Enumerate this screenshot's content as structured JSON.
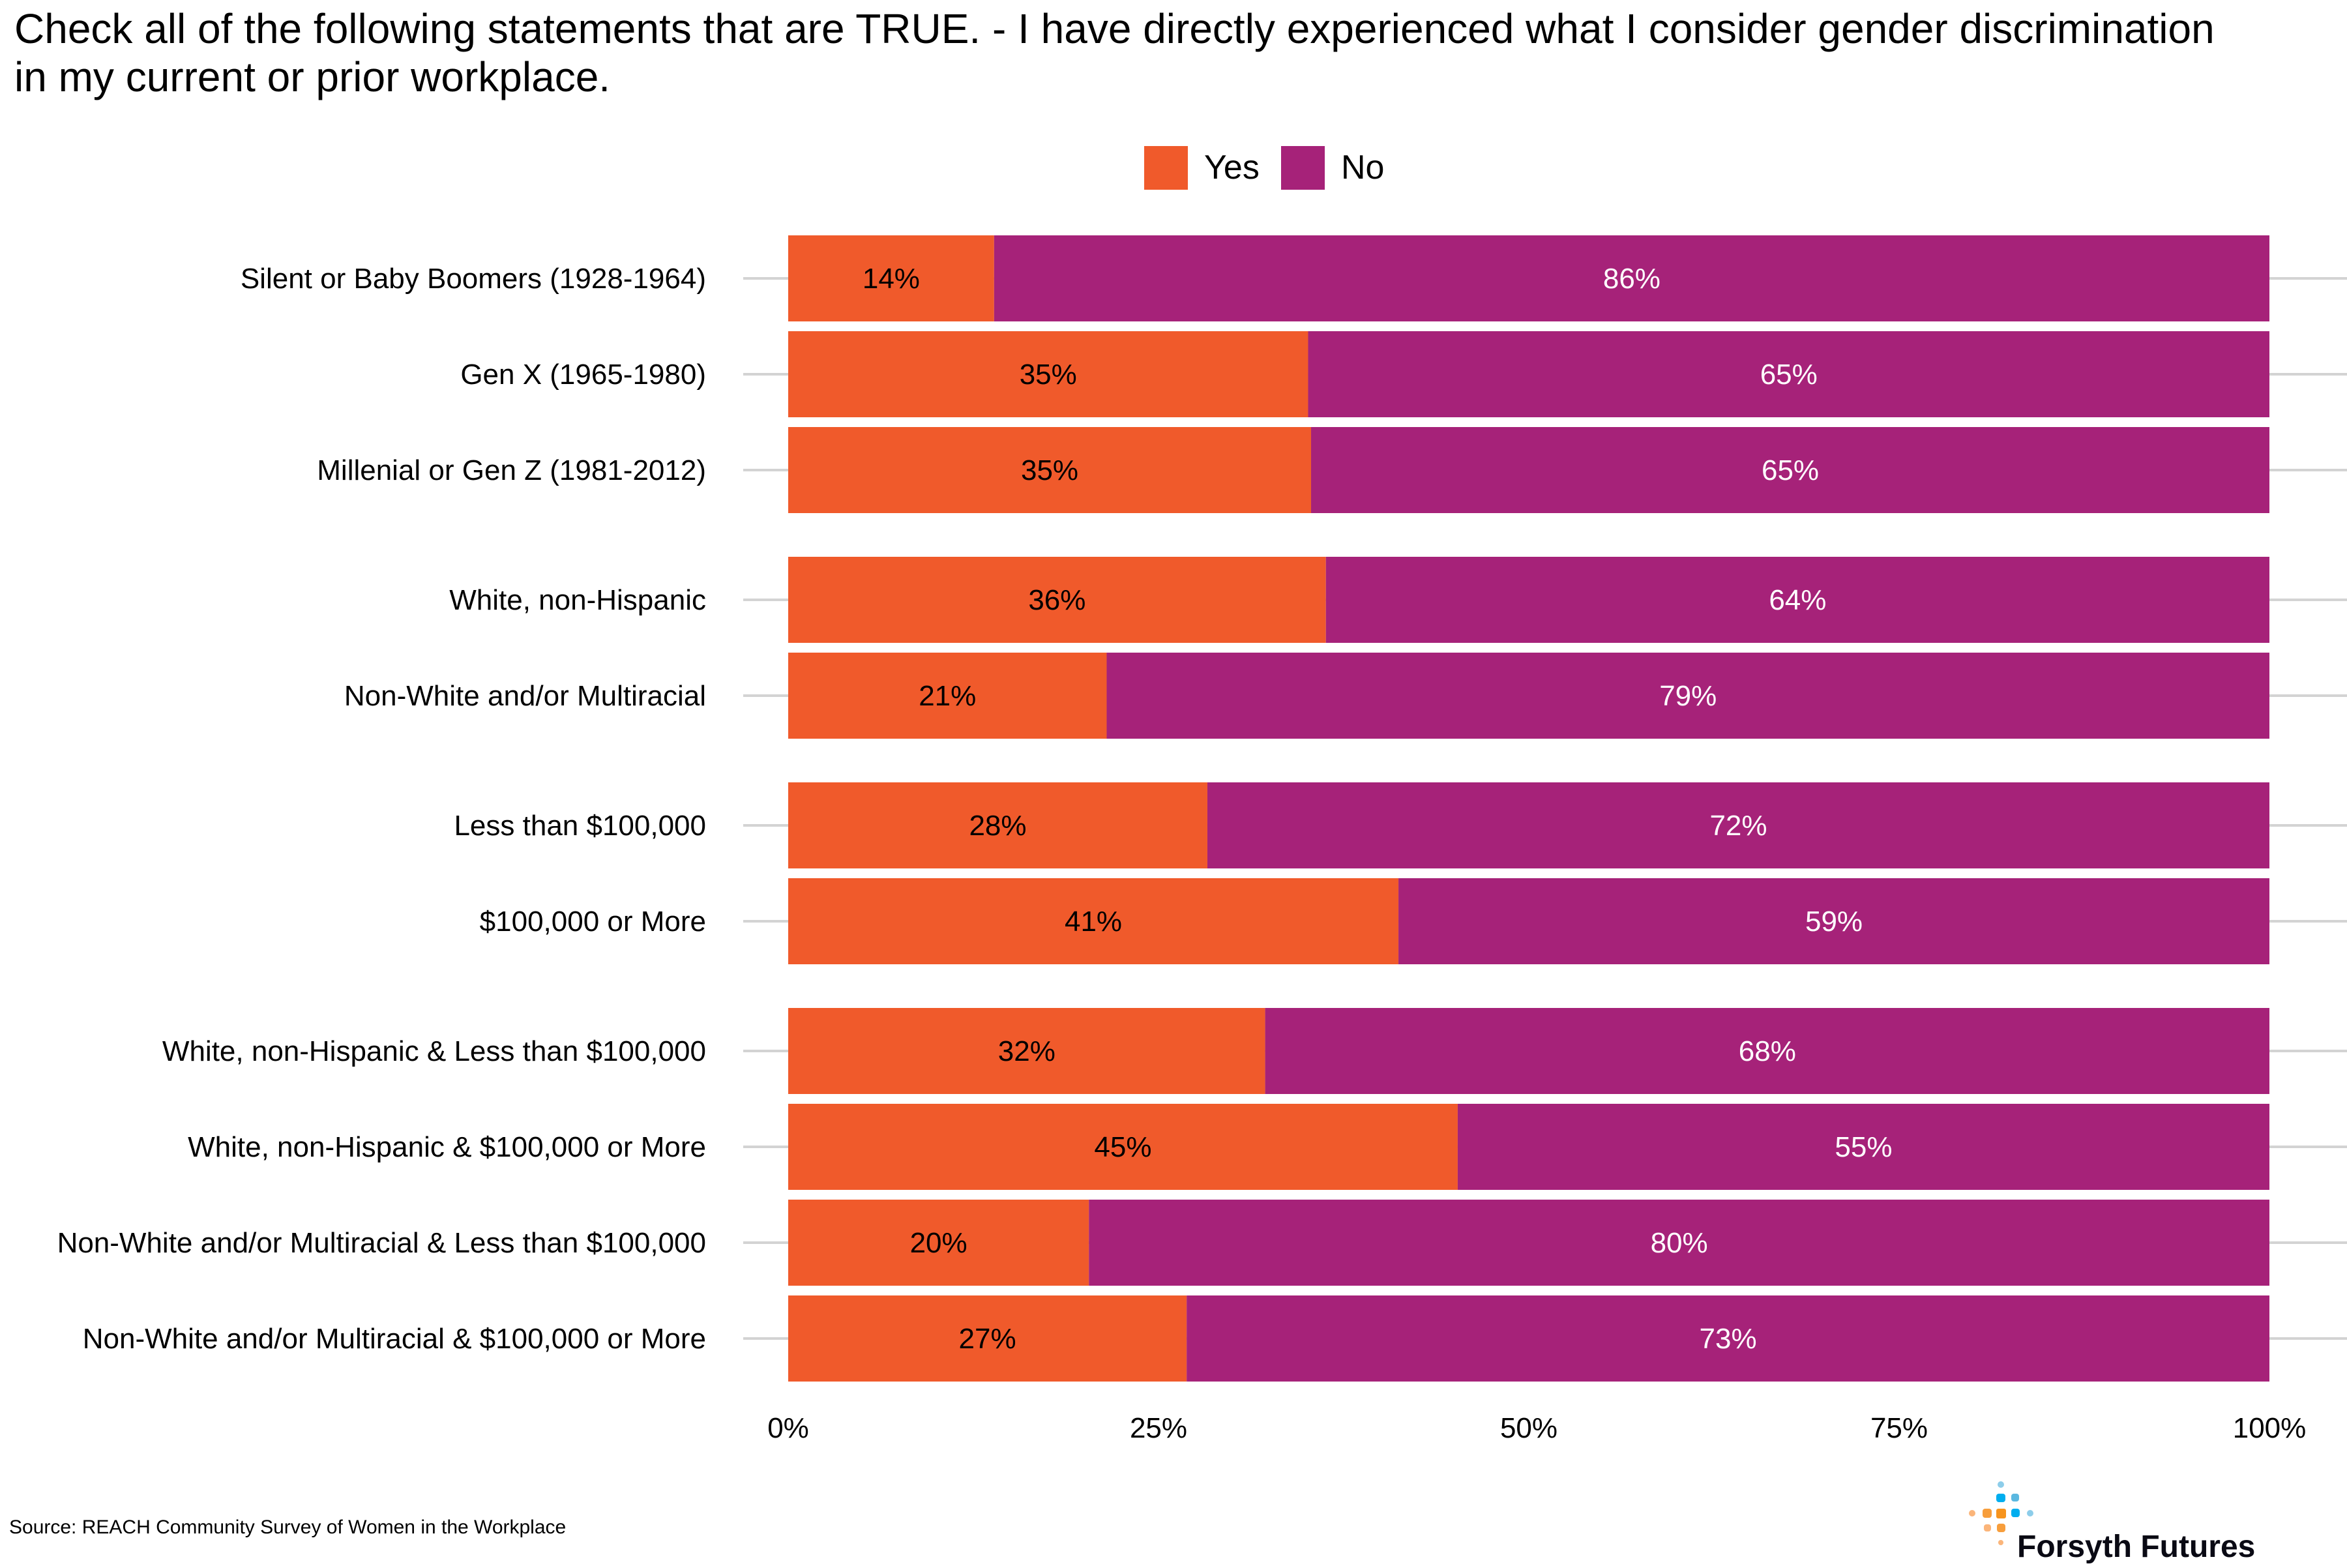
{
  "chart_data": {
    "type": "bar",
    "orientation": "horizontal",
    "stacked": true,
    "title": "Check all of the following statements that are TRUE. - I have directly experienced what I consider gender discrimination in my current or prior workplace.",
    "title_lines": [
      "Check all of the following statements that are TRUE. - I have directly experienced what I consider gender discrimination",
      "in my current or prior workplace."
    ],
    "xlabel": "",
    "ylabel": "",
    "xlim": [
      0,
      1
    ],
    "x_ticks": [
      "0%",
      "25%",
      "50%",
      "75%",
      "100%"
    ],
    "grid": "horizontal lines at each category",
    "legend_position": "top",
    "categories": [
      "Silent or Baby Boomers (1928-1964)",
      "Gen X (1965-1980)",
      "Millenial or Gen Z (1981-2012)",
      "White, non-Hispanic",
      "Non-White and/or Multiracial",
      "Less than $100,000",
      "$100,000 or More",
      "White, non-Hispanic & Less than $100,000",
      "White, non-Hispanic & $100,000 or More",
      "Non-White and/or Multiracial & Less than $100,000",
      "Non-White and/or Multiracial & $100,000 or More"
    ],
    "groups": [
      [
        0,
        1,
        2
      ],
      [
        3,
        4
      ],
      [
        5,
        6
      ],
      [
        7,
        8,
        9,
        10
      ]
    ],
    "series": [
      {
        "name": "Yes",
        "color": "#F05A2B",
        "label_color": "#000000",
        "values": [
          0.139,
          0.351,
          0.353,
          0.363,
          0.215,
          0.283,
          0.412,
          0.322,
          0.452,
          0.203,
          0.269
        ],
        "labels": [
          "14%",
          "35%",
          "35%",
          "36%",
          "21%",
          "28%",
          "41%",
          "32%",
          "45%",
          "20%",
          "27%"
        ]
      },
      {
        "name": "No",
        "color": "#A62279",
        "label_color": "#FFFFFF",
        "values": [
          0.861,
          0.649,
          0.647,
          0.637,
          0.785,
          0.717,
          0.588,
          0.678,
          0.548,
          0.797,
          0.731
        ],
        "labels": [
          "86%",
          "65%",
          "65%",
          "64%",
          "79%",
          "72%",
          "59%",
          "68%",
          "55%",
          "80%",
          "73%"
        ]
      }
    ]
  },
  "source": "Source: REACH Community Survey of Women in the Workplace",
  "logo": {
    "text": "Forsyth Futures",
    "colors": [
      "#F7941D",
      "#00AEEF"
    ]
  }
}
